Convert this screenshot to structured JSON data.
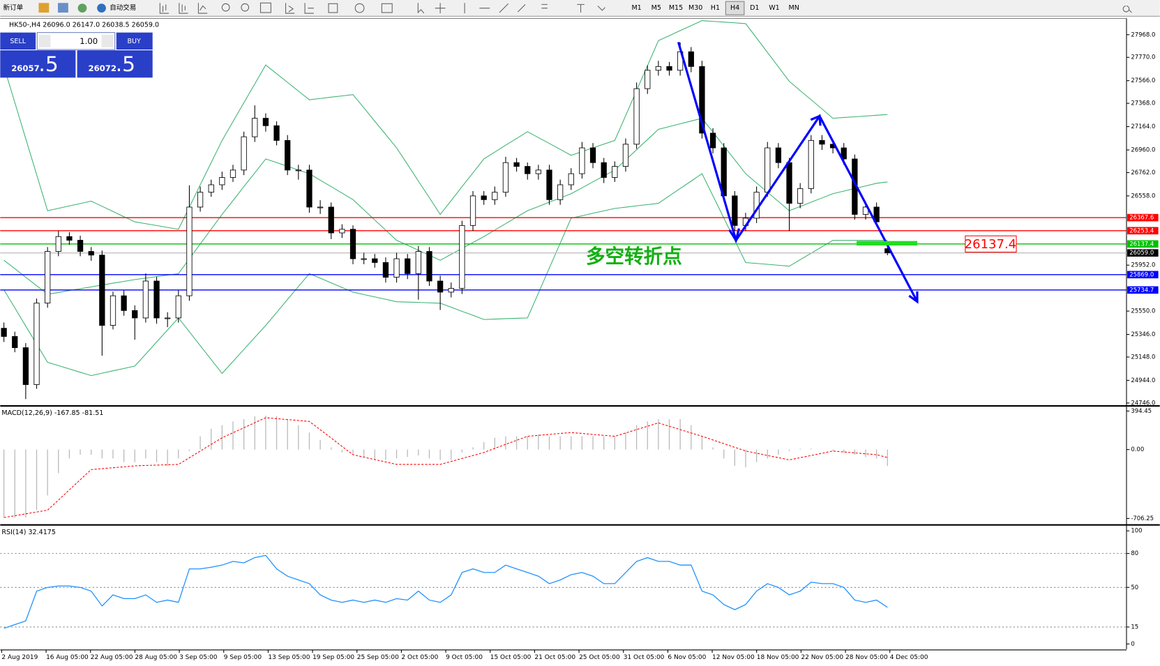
{
  "toolbar": {
    "new_order": "新订单",
    "auto_trading": "自动交易",
    "timeframes": [
      "M1",
      "M5",
      "M15",
      "M30",
      "H1",
      "H4",
      "D1",
      "W1",
      "MN"
    ],
    "active_timeframe": "H4"
  },
  "trade_panel": {
    "sell": "SELL",
    "lots": "1.00",
    "buy": "BUY",
    "bid_big": "26057",
    "bid_small": ".5",
    "ask_big": "26072",
    "ask_small": ".5"
  },
  "time_axis": {
    "labels": [
      "2 Aug 2019",
      "16 Aug 05:00",
      "22 Aug 05:00",
      "28 Aug 05:00",
      "3 Sep 05:00",
      "9 Sep 05:00",
      "13 Sep 05:00",
      "19 Sep 05:00",
      "25 Sep 05:00",
      "2 Oct 05:00",
      "9 Oct 05:00",
      "15 Oct 05:00",
      "21 Oct 05:00",
      "25 Oct 05:00",
      "31 Oct 05:00",
      "6 Nov 05:00",
      "12 Nov 05:00",
      "18 Nov 05:00",
      "22 Nov 05:00",
      "28 Nov 05:00",
      "4 Dec 05:00"
    ]
  },
  "chart_data": [
    {
      "type": "candlestick",
      "title": "HK50-,H4  26096.0 26147.0 26038.5 26059.0",
      "colors": {
        "up": "#ffffff",
        "down": "#000000",
        "outline": "#000000"
      },
      "ohlc": [
        [
          25400,
          25450,
          25280,
          25328
        ],
        [
          25328,
          25370,
          25190,
          25230
        ],
        [
          25230,
          25270,
          24780,
          24907
        ],
        [
          24907,
          25660,
          24870,
          25620
        ],
        [
          25620,
          26110,
          25580,
          26072
        ],
        [
          26072,
          26250,
          26030,
          26202
        ],
        [
          26202,
          26240,
          26130,
          26170
        ],
        [
          26170,
          26210,
          26030,
          26072
        ],
        [
          26072,
          26110,
          25990,
          26040
        ],
        [
          26040,
          26080,
          25160,
          25425
        ],
        [
          25425,
          25720,
          25390,
          25684
        ],
        [
          25684,
          25730,
          25510,
          25555
        ],
        [
          25555,
          25600,
          25300,
          25490
        ],
        [
          25490,
          25880,
          25450,
          25813
        ],
        [
          25813,
          25850,
          25440,
          25490
        ],
        [
          25490,
          25540,
          25410,
          25490
        ],
        [
          25490,
          25730,
          25450,
          25684
        ],
        [
          25684,
          26650,
          25640,
          26460
        ],
        [
          26460,
          26640,
          26420,
          26590
        ],
        [
          26590,
          26700,
          26550,
          26655
        ],
        [
          26655,
          26770,
          26610,
          26719
        ],
        [
          26719,
          26830,
          26680,
          26784
        ],
        [
          26784,
          27120,
          26740,
          27075
        ],
        [
          27075,
          27350,
          27030,
          27237
        ],
        [
          27237,
          27280,
          27120,
          27172
        ],
        [
          27172,
          27210,
          27000,
          27043
        ],
        [
          27043,
          27090,
          26740,
          26784
        ],
        [
          26784,
          26830,
          26700,
          26784
        ],
        [
          26784,
          26830,
          26410,
          26460
        ],
        [
          26460,
          26520,
          26400,
          26460
        ],
        [
          26460,
          26500,
          26180,
          26234
        ],
        [
          26234,
          26310,
          26190,
          26266
        ],
        [
          26266,
          26300,
          25960,
          26008
        ],
        [
          26008,
          26060,
          25960,
          26008
        ],
        [
          26008,
          26050,
          25930,
          25975
        ],
        [
          25975,
          26020,
          25800,
          25846
        ],
        [
          25846,
          26060,
          25800,
          26008
        ],
        [
          26008,
          26050,
          25830,
          25878
        ],
        [
          25878,
          26120,
          25650,
          26072
        ],
        [
          26072,
          26110,
          25770,
          25813
        ],
        [
          25813,
          25860,
          25560,
          25716
        ],
        [
          25716,
          25800,
          25670,
          25749
        ],
        [
          25749,
          26340,
          25700,
          26299
        ],
        [
          26299,
          26600,
          26250,
          26558
        ],
        [
          26558,
          26600,
          26480,
          26525
        ],
        [
          26525,
          26640,
          26480,
          26590
        ],
        [
          26590,
          26900,
          26550,
          26849
        ],
        [
          26849,
          26890,
          26770,
          26816
        ],
        [
          26816,
          26850,
          26700,
          26752
        ],
        [
          26752,
          26830,
          26700,
          26784
        ],
        [
          26784,
          26830,
          26480,
          26525
        ],
        [
          26525,
          26700,
          26480,
          26655
        ],
        [
          26655,
          26800,
          26610,
          26752
        ],
        [
          26752,
          27030,
          26710,
          26978
        ],
        [
          26978,
          27020,
          26800,
          26849
        ],
        [
          26849,
          26890,
          26670,
          26719
        ],
        [
          26719,
          26860,
          26680,
          26816
        ],
        [
          26816,
          27060,
          26770,
          27010
        ],
        [
          27010,
          27550,
          26970,
          27496
        ],
        [
          27496,
          27700,
          27450,
          27657
        ],
        [
          27657,
          27740,
          27610,
          27690
        ],
        [
          27690,
          27730,
          27610,
          27657
        ],
        [
          27657,
          27900,
          27610,
          27819
        ],
        [
          27819,
          27860,
          27640,
          27690
        ],
        [
          27690,
          27740,
          27060,
          27107
        ],
        [
          27107,
          27150,
          26930,
          26978
        ],
        [
          26978,
          27020,
          26510,
          26558
        ],
        [
          26558,
          26600,
          26250,
          26299
        ],
        [
          26299,
          26410,
          26250,
          26363
        ],
        [
          26363,
          26640,
          26320,
          26590
        ],
        [
          26590,
          27030,
          26550,
          26978
        ],
        [
          26978,
          27020,
          26800,
          26849
        ],
        [
          26849,
          26890,
          26250,
          26493
        ],
        [
          26493,
          26670,
          26450,
          26622
        ],
        [
          26622,
          27090,
          26580,
          27043
        ],
        [
          27043,
          27090,
          26960,
          27010
        ],
        [
          27010,
          27050,
          26930,
          26978
        ],
        [
          26978,
          27020,
          26830,
          26881
        ],
        [
          26881,
          26920,
          26350,
          26396
        ],
        [
          26396,
          26510,
          26350,
          26460
        ],
        [
          26460,
          26500,
          26290,
          26331
        ],
        [
          26096,
          26147,
          26038.5,
          26059
        ]
      ],
      "bands": {
        "color": "#3cb371",
        "upper": [
          27690,
          27374,
          27059,
          26743,
          26428,
          26449,
          26470,
          26491,
          26512,
          26467,
          26422,
          26376,
          26331,
          26315,
          26299,
          26282,
          26266,
          26460,
          26655,
          26849,
          27043,
          27208,
          27373,
          27538,
          27703,
          27627,
          27551,
          27475,
          27399,
          27410,
          27422,
          27433,
          27444,
          27328,
          27211,
          27095,
          26978,
          26833,
          26687,
          26542,
          26396,
          26517,
          26639,
          26760,
          26881,
          26941,
          27001,
          27060,
          27120,
          27068,
          27017,
          26965,
          26913,
          26946,
          26978,
          27011,
          27043,
          27261,
          27480,
          27698,
          27916,
          27960,
          28004,
          28047,
          28091,
          28085,
          28078,
          28072,
          28065,
          27939,
          27813,
          27686,
          27560,
          27479,
          27399,
          27318,
          27237,
          27244,
          27250,
          27257,
          27263,
          27270
        ],
        "middle": [
          25995,
          25921,
          25846,
          25772,
          25697,
          25713,
          25730,
          25746,
          25762,
          25778,
          25794,
          25810,
          25826,
          25839,
          25852,
          25865,
          25878,
          26008,
          26137,
          26267,
          26396,
          26517,
          26639,
          26760,
          26881,
          26849,
          26817,
          26784,
          26752,
          26695,
          26639,
          26582,
          26525,
          26436,
          26347,
          26258,
          26169,
          26126,
          26082,
          26039,
          25995,
          26047,
          26099,
          26150,
          26202,
          26259,
          26315,
          26372,
          26428,
          26465,
          26503,
          26540,
          26577,
          26629,
          26681,
          26732,
          26784,
          26873,
          26962,
          27051,
          27140,
          27164,
          27189,
          27213,
          27237,
          27116,
          26995,
          26873,
          26752,
          26671,
          26590,
          26509,
          26428,
          26465,
          26503,
          26540,
          26577,
          26600,
          26623,
          26645,
          26668,
          26680
        ],
        "lower": [
          25736,
          25578,
          25419,
          25261,
          25102,
          25073,
          25044,
          25015,
          24986,
          25007,
          25028,
          25048,
          25069,
          25174,
          25280,
          25385,
          25490,
          25369,
          25248,
          25126,
          25005,
          25110,
          25215,
          25320,
          25425,
          25538,
          25652,
          25765,
          25878,
          25838,
          25797,
          25757,
          25716,
          25695,
          25674,
          25653,
          25632,
          25629,
          25626,
          25622,
          25619,
          25584,
          25548,
          25513,
          25477,
          25480,
          25484,
          25487,
          25490,
          25708,
          25927,
          26145,
          26363,
          26384,
          26406,
          26427,
          26448,
          26459,
          26471,
          26482,
          26493,
          26558,
          26623,
          26687,
          26752,
          26558,
          26364,
          26169,
          25975,
          25967,
          25959,
          25951,
          25943,
          26000,
          26056,
          26113,
          26169,
          26169,
          26169,
          26169,
          26169,
          26169
        ]
      },
      "ylim": [
        24727,
        28110
      ],
      "yticks": [
        {
          "value": 27968,
          "label": "27968.0"
        },
        {
          "value": 27770,
          "label": "27770.0"
        },
        {
          "value": 27566,
          "label": "27566.0"
        },
        {
          "value": 27368,
          "label": "27368.0"
        },
        {
          "value": 27164,
          "label": "27164.0"
        },
        {
          "value": 26960,
          "label": "26960.0"
        },
        {
          "value": 26762,
          "label": "26762.0"
        },
        {
          "value": 26558,
          "label": "26558.0"
        },
        {
          "value": 25952,
          "label": "25952.0"
        },
        {
          "value": 25550,
          "label": "25550.0"
        },
        {
          "value": 25346,
          "label": "25346.0"
        },
        {
          "value": 25148,
          "label": "25148.0"
        },
        {
          "value": 24944,
          "label": "24944.0"
        },
        {
          "value": 24746,
          "label": "24746.0"
        }
      ],
      "price_lines": [
        {
          "value": 26367.6,
          "label": "26367.6",
          "color": "#ff0000"
        },
        {
          "value": 26253.4,
          "label": "26253.4",
          "color": "#ff0000"
        },
        {
          "value": 26137.4,
          "label": "26137.4",
          "color": "#00c000"
        },
        {
          "value": 26059,
          "label": "26059.0",
          "color": "#c0c0c0"
        },
        {
          "value": 25869,
          "label": "25869.0",
          "color": "#0000ff"
        },
        {
          "value": 25734.7,
          "label": "25734.7",
          "color": "#0000ff"
        }
      ],
      "annotations": [
        {
          "text": "多空转折点",
          "color": "#10b010"
        },
        {
          "text": "26137.4",
          "color": "#ff0000"
        }
      ]
    },
    {
      "type": "macd",
      "title": "MACD(12,26,9) -167.85 -81.51",
      "color": "#b8b8b8",
      "signal_color": "#ff0000",
      "values": [
        -697,
        -697,
        -697,
        -621,
        -470,
        -242,
        -91,
        -53,
        -53,
        -91,
        -91,
        -129,
        -129,
        -91,
        -129,
        -167,
        -91,
        -15,
        136,
        212,
        250,
        288,
        311,
        341,
        348,
        341,
        303,
        250,
        174,
        98,
        23,
        -30,
        -53,
        -76,
        -106,
        -106,
        -91,
        -76,
        -61,
        -91,
        -106,
        -106,
        -30,
        23,
        76,
        121,
        136,
        136,
        136,
        152,
        136,
        136,
        136,
        136,
        136,
        136,
        136,
        174,
        250,
        288,
        311,
        311,
        311,
        250,
        136,
        23,
        -91,
        -167,
        -182,
        -129,
        -91,
        -53,
        -15,
        8,
        8,
        0,
        -15,
        -30,
        -53,
        -76,
        -91,
        -167.85
      ],
      "signal": [
        -697,
        -678,
        -659,
        -640,
        -621,
        -517,
        -413,
        -309,
        -205,
        -196,
        -186,
        -177,
        -167,
        -163,
        -160,
        -156,
        -152,
        -84,
        -16,
        53,
        121,
        172,
        224,
        275,
        326,
        317,
        307,
        298,
        288,
        203,
        118,
        32,
        -53,
        -78,
        -103,
        -127,
        -152,
        -152,
        -152,
        -152,
        -152,
        -122,
        -91,
        -61,
        -30,
        12,
        53,
        95,
        136,
        146,
        155,
        165,
        174,
        165,
        155,
        146,
        136,
        170,
        205,
        239,
        273,
        239,
        205,
        170,
        136,
        98,
        61,
        23,
        -15,
        -38,
        -61,
        -83,
        -106,
        -83,
        -61,
        -38,
        -15,
        -25,
        -34,
        -44,
        -53,
        -81.51
      ],
      "ylim": [
        -765,
        432
      ],
      "yticks": [
        394.45,
        {
          "value": 0,
          "label": "0.00"
        },
        -706.25
      ]
    },
    {
      "type": "line",
      "title": "RSI(14) 32.4175",
      "color": "#1e90ff",
      "values": [
        13.8,
        17.1,
        20.4,
        46.7,
        50.0,
        51.3,
        51.3,
        50.0,
        46.7,
        33.6,
        43.4,
        40.1,
        40.1,
        43.4,
        36.8,
        38.8,
        36.8,
        66.4,
        66.4,
        67.8,
        69.7,
        73.0,
        71.7,
        76.3,
        78.3,
        66.4,
        59.9,
        56.6,
        53.3,
        43.4,
        38.8,
        36.8,
        38.8,
        36.8,
        38.8,
        36.8,
        40.1,
        38.8,
        46.7,
        38.8,
        36.8,
        43.4,
        63.2,
        66.4,
        63.2,
        63.2,
        69.7,
        66.4,
        63.2,
        59.9,
        53.3,
        56.6,
        61.2,
        63.2,
        59.9,
        53.3,
        53.3,
        63.2,
        73.0,
        76.3,
        73.0,
        73.0,
        69.7,
        69.7,
        46.7,
        43.4,
        34.9,
        30.3,
        34.9,
        46.7,
        53.3,
        50.0,
        43.4,
        46.7,
        54.6,
        53.3,
        53.3,
        50.0,
        38.8,
        36.8,
        38.8,
        32.4175
      ],
      "ylim": [
        -4.6,
        103.9
      ],
      "yticks": [
        100,
        80,
        50,
        15,
        0
      ]
    }
  ]
}
